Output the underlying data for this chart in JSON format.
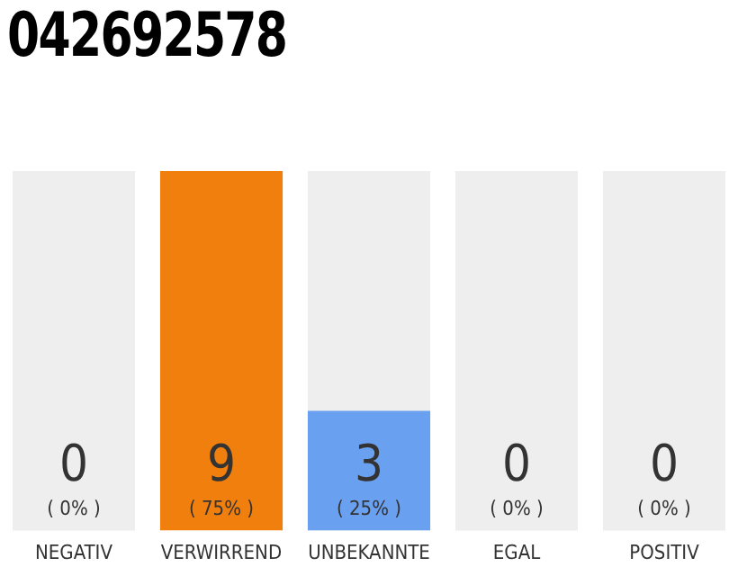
{
  "chart_data": {
    "type": "bar",
    "title": "042692578",
    "categories": [
      "NEGATIV",
      "VERWIRREND",
      "UNBEKANNTE",
      "EGAL",
      "POSITIV"
    ],
    "values": [
      0,
      9,
      3,
      0,
      0
    ],
    "colors": [
      "#f07f0d",
      "#f07f0d",
      "#6aa0f0",
      "#f07f0d",
      "#f07f0d"
    ],
    "ylim": [
      0,
      9
    ],
    "tick_labels": "x",
    "grid": false,
    "legend": false,
    "data_labels": true,
    "annotations": [
      "( 0% )",
      "( 75% )",
      "( 25% )",
      "( 0% )",
      "( 0% )"
    ],
    "bands": [
      {
        "axis": "x",
        "from": "NEGATIV",
        "to": "NEGATIV",
        "color": "#eeeeee"
      },
      {
        "axis": "x",
        "from": "UNBEKANNTE",
        "to": "UNBEKANNTE",
        "color": "#eeeeee"
      },
      {
        "axis": "x",
        "from": "EGAL",
        "to": "EGAL",
        "color": "#eeeeee"
      },
      {
        "axis": "x",
        "from": "POSITIV",
        "to": "POSITIV",
        "color": "#eeeeee"
      }
    ]
  }
}
